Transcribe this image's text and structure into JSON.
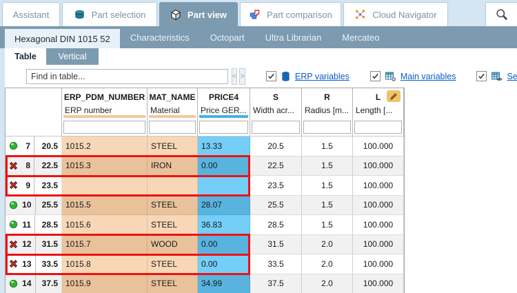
{
  "topbar": {
    "tabs": [
      {
        "label": "Assistant",
        "icon": null,
        "active": false
      },
      {
        "label": "Part selection",
        "icon": "layers-icon",
        "active": false
      },
      {
        "label": "Part view",
        "icon": "cube-icon",
        "active": true
      },
      {
        "label": "Part comparison",
        "icon": "compare-icon",
        "active": false
      },
      {
        "label": "Cloud Navigator",
        "icon": "network-icon",
        "active": false
      },
      {
        "label": "",
        "icon": "search-icon",
        "active": false,
        "search": true
      }
    ]
  },
  "subtabs": [
    {
      "label": "Hexagonal DIN 1015 52",
      "active": true
    },
    {
      "label": "Characteristics",
      "active": false
    },
    {
      "label": "Octopart",
      "active": false
    },
    {
      "label": "Ultra Librarian",
      "active": false
    },
    {
      "label": "Mercateo",
      "active": false
    }
  ],
  "view_tabs": [
    {
      "label": "Table",
      "active": true
    },
    {
      "label": "Vertical",
      "active": false
    }
  ],
  "toolbar": {
    "find_placeholder": "Find in table...",
    "prev_label": "<",
    "next_label": ">",
    "checkboxes": [
      {
        "label": "ERP variables",
        "icon": "database-icon",
        "checked": true
      },
      {
        "label": "Main variables",
        "icon": "main-variables-icon",
        "checked": true
      },
      {
        "label": "Seconda",
        "icon": "secondary-variables-icon",
        "checked": true
      }
    ]
  },
  "table": {
    "columns": [
      {
        "name": "ERP_PDM_NUMBER",
        "desc": "ERP number",
        "bar": "orange"
      },
      {
        "name": "MAT_NAME",
        "desc": "Material",
        "bar": "orange"
      },
      {
        "name": "PRICE4",
        "desc": "Price GER...",
        "bar": "blue"
      },
      {
        "name": "S",
        "desc": "Width acr...",
        "bar": null
      },
      {
        "name": "R",
        "desc": "Radius [m...",
        "bar": null
      },
      {
        "name": "L",
        "desc": "Length [...",
        "bar": null,
        "edit_icon": "pencil-icon"
      }
    ],
    "rows": [
      {
        "num": "7",
        "key": "20.5",
        "status": "ok",
        "erp": "1015.2",
        "mat": "STEEL",
        "price": "13.33",
        "s": "20.5",
        "r": "1.5",
        "l": "100.000",
        "flagged": false
      },
      {
        "num": "8",
        "key": "22.5",
        "status": "error",
        "erp": "1015.3",
        "mat": "IRON",
        "price": "0.00",
        "s": "22.5",
        "r": "1.5",
        "l": "100.000",
        "flagged": true
      },
      {
        "num": "9",
        "key": "23.5",
        "status": "error",
        "erp": "",
        "mat": "",
        "price": "",
        "s": "23.5",
        "r": "1.5",
        "l": "100.000",
        "flagged": true
      },
      {
        "num": "10",
        "key": "25.5",
        "status": "ok",
        "erp": "1015.5",
        "mat": "STEEL",
        "price": "28.07",
        "s": "25.5",
        "r": "1.5",
        "l": "100.000",
        "flagged": false
      },
      {
        "num": "11",
        "key": "28.5",
        "status": "ok",
        "erp": "1015.6",
        "mat": "STEEL",
        "price": "36.83",
        "s": "28.5",
        "r": "1.5",
        "l": "100.000",
        "flagged": false
      },
      {
        "num": "12",
        "key": "31.5",
        "status": "error",
        "erp": "1015.7",
        "mat": "WOOD",
        "price": "0.00",
        "s": "31.5",
        "r": "2.0",
        "l": "100.000",
        "flagged": true
      },
      {
        "num": "13",
        "key": "33.5",
        "status": "error",
        "erp": "1015.8",
        "mat": "STEEL",
        "price": "0.00",
        "s": "33.5",
        "r": "2.0",
        "l": "100.000",
        "flagged": true
      },
      {
        "num": "14",
        "key": "37.5",
        "status": "ok",
        "erp": "1015.9",
        "mat": "STEEL",
        "price": "34.99",
        "s": "37.5",
        "r": "2.0",
        "l": "100.000",
        "flagged": false
      }
    ]
  },
  "colors": {
    "steel": "#7d9bb0",
    "panelblue": "#d5e5f1",
    "tabborder": "#aecbe0",
    "tabtext": "#7b93a6",
    "peach": "#f8d7b6",
    "peach_alt": "#e9c29c",
    "price_blue": "#74cef7",
    "price_blue_alt": "#58b4df",
    "stripe": "#f1f1f1",
    "error_border": "#ee1111",
    "link": "#0a5cc8",
    "bar_orange": "#f2c79c",
    "bar_blue": "#45b1e8",
    "status_ok": "#3cb43c",
    "status_error": "#c03028"
  }
}
